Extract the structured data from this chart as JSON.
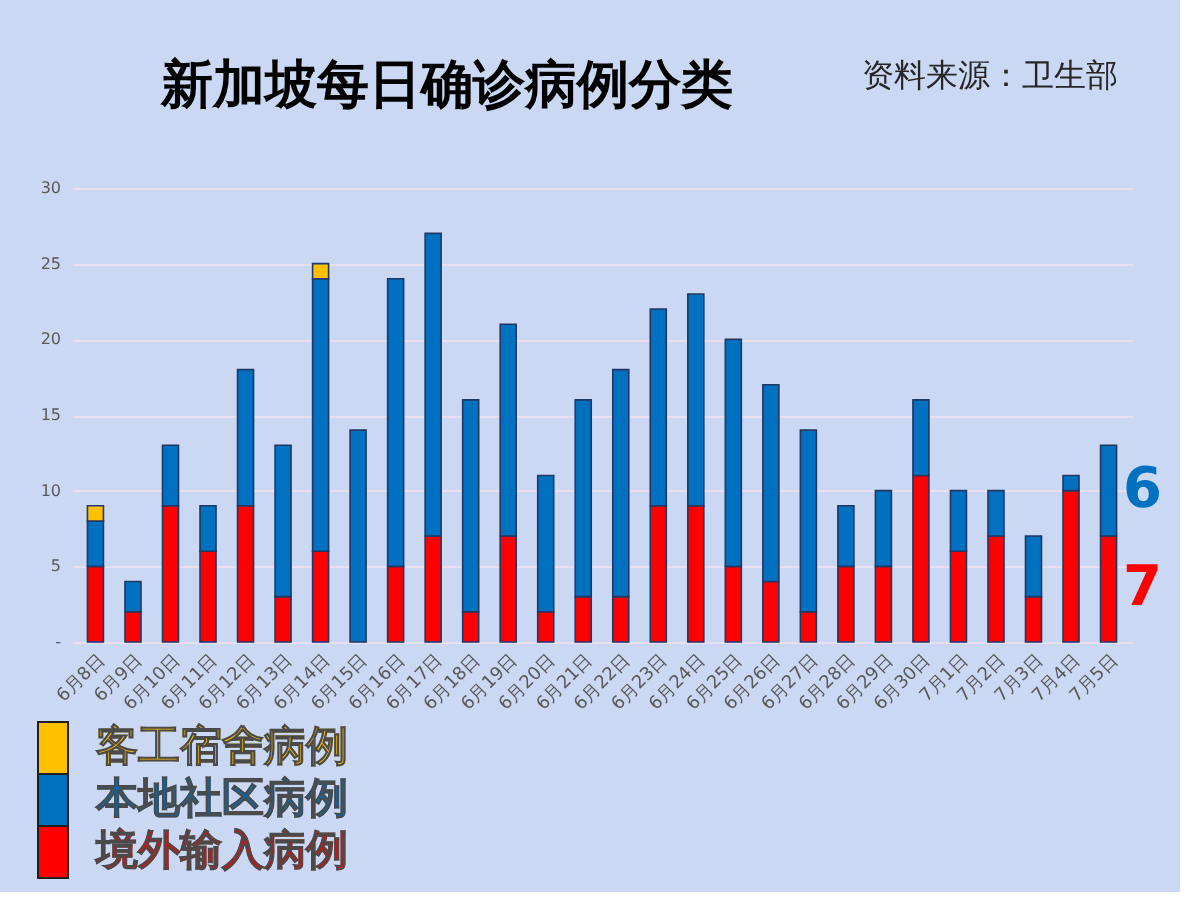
{
  "chart_data": {
    "type": "bar",
    "title": "新加坡每日确诊病例分类",
    "annotations": [
      "资料来源：卫生部"
    ],
    "categories": [
      "6月8日",
      "6月9日",
      "6月10日",
      "6月11日",
      "6月12日",
      "6月13日",
      "6月14日",
      "6月15日",
      "6月16日",
      "6月17日",
      "6月18日",
      "6月19日",
      "6月20日",
      "6月21日",
      "6月22日",
      "6月23日",
      "6月24日",
      "6月25日",
      "6月26日",
      "6月27日",
      "6月28日",
      "6月29日",
      "6月30日",
      "7月1日",
      "7月2日",
      "7月3日",
      "7月4日",
      "7月5日"
    ],
    "stacked": true,
    "series": [
      {
        "name": "境外输入病例",
        "color": "#ff0000",
        "values": [
          5,
          2,
          9,
          6,
          9,
          3,
          6,
          0,
          5,
          7,
          2,
          7,
          2,
          3,
          3,
          9,
          9,
          5,
          4,
          2,
          5,
          5,
          11,
          6,
          7,
          3,
          10,
          7
        ],
        "value_labels": [
          null,
          null,
          null,
          null,
          null,
          null,
          null,
          null,
          null,
          null,
          null,
          null,
          null,
          null,
          null,
          null,
          null,
          null,
          null,
          null,
          null,
          null,
          null,
          null,
          null,
          null,
          null,
          "7"
        ]
      },
      {
        "name": "本地社区病例",
        "color": "#0070c0",
        "values": [
          3,
          2,
          4,
          3,
          9,
          10,
          18,
          14,
          19,
          20,
          14,
          14,
          9,
          13,
          15,
          13,
          14,
          15,
          13,
          12,
          4,
          5,
          5,
          4,
          3,
          4,
          1,
          6
        ],
        "value_labels": [
          null,
          null,
          null,
          null,
          null,
          null,
          null,
          null,
          null,
          null,
          null,
          null,
          null,
          null,
          null,
          null,
          null,
          null,
          null,
          null,
          null,
          null,
          null,
          null,
          null,
          null,
          null,
          "6"
        ]
      },
      {
        "name": "客工宿舍病例",
        "color": "#ffc000",
        "values": [
          1,
          0,
          0,
          0,
          0,
          0,
          1,
          0,
          0,
          0,
          0,
          0,
          0,
          0,
          0,
          0,
          0,
          0,
          0,
          0,
          0,
          0,
          0,
          0,
          0,
          0,
          0,
          0
        ]
      }
    ],
    "ylim": [
      0,
      30
    ],
    "yticks": [
      {
        "value": 0,
        "label": "-"
      },
      5,
      10,
      15,
      20,
      25,
      30
    ],
    "grid": "y",
    "legend": "bottom left"
  }
}
